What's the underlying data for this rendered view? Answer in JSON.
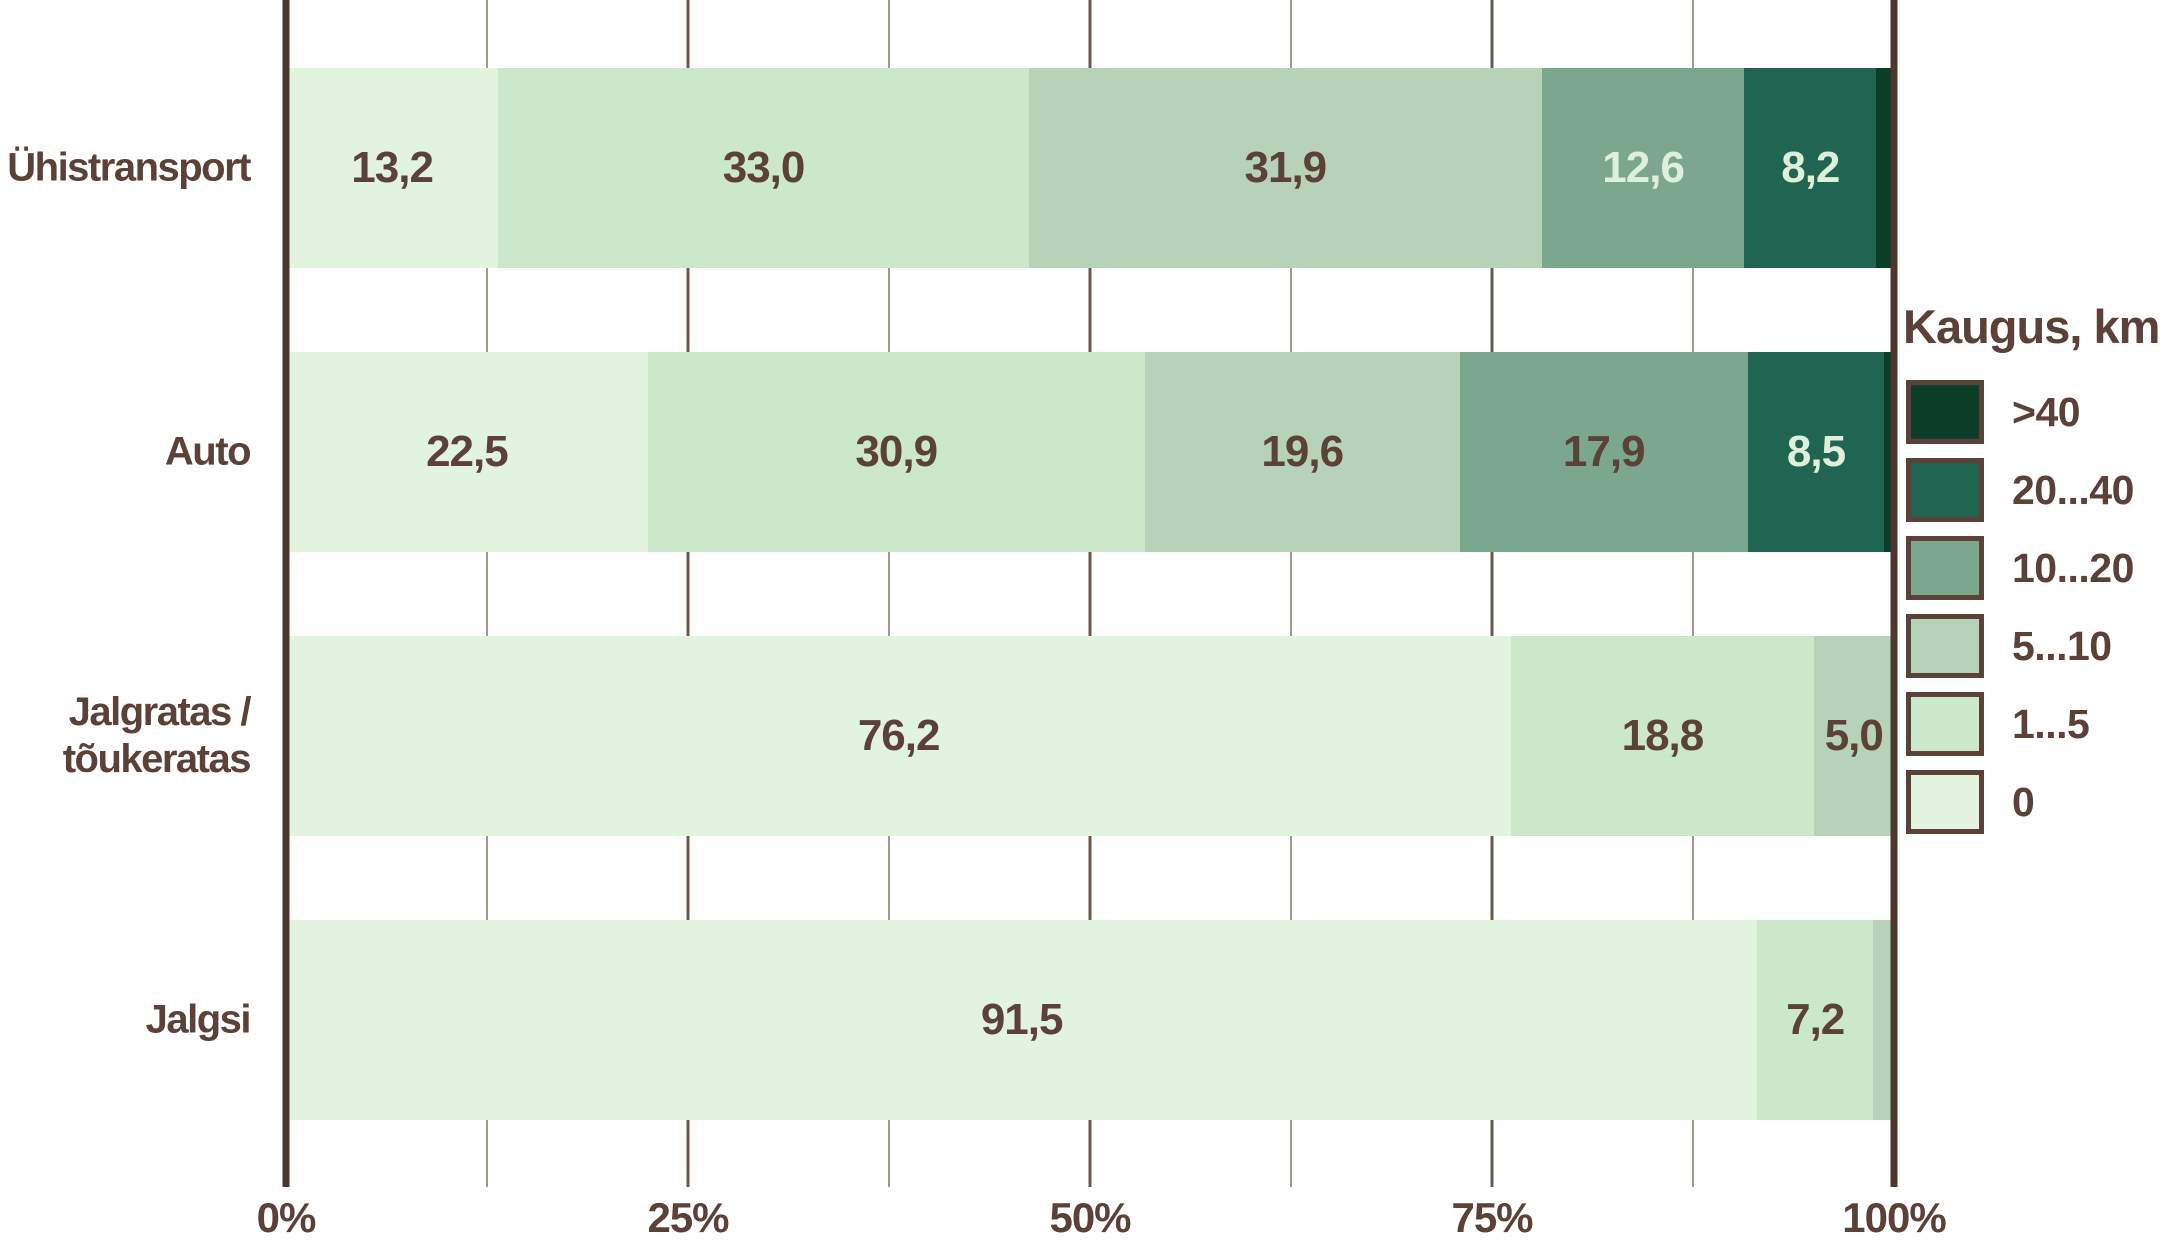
{
  "colors": {
    "background": "#ffffff",
    "text": "#5b4137",
    "segment_label_light": "#def0dc",
    "axis_line": "#4e372d",
    "grid_major": "#6e584e",
    "grid_minor": "#a5958c",
    "buckets": {
      "0": "#e2f4e0",
      "1...5": "#cce8ca",
      "5...10": "#b6d3b9",
      "10...20": "#7aa78e",
      "20...40": "#1f6552",
      ">40": "#0c3d28"
    }
  },
  "x_axis": {
    "tick_labels": [
      "0%",
      "25%",
      "50%",
      "75%",
      "100%"
    ],
    "range": [
      0,
      100
    ],
    "major_step": 25,
    "minor_step": 12.5
  },
  "chart_data": {
    "type": "bar",
    "stacked": true,
    "orientation": "horizontal",
    "unit": "%",
    "xlim": [
      0,
      100
    ],
    "grid": true,
    "legend_position": "right",
    "legend": {
      "title": "Kaugus, km",
      "entries": [
        {
          "label": ">40",
          "bucket": ">40",
          "color": "#0c3d28"
        },
        {
          "label": "20...40",
          "bucket": "20...40",
          "color": "#1f6552"
        },
        {
          "label": "10...20",
          "bucket": "10...20",
          "color": "#7aa78e"
        },
        {
          "label": "5...10",
          "bucket": "5...10",
          "color": "#b6d3b9"
        },
        {
          "label": "1...5",
          "bucket": "1...5",
          "color": "#cce8ca"
        },
        {
          "label": "0",
          "bucket": "0",
          "color": "#e2f4e0"
        }
      ]
    },
    "categories": [
      "Ühistransport",
      "Auto",
      "Jalgratas / tõukeratas",
      "Jalgsi"
    ],
    "series": [
      {
        "name": "0",
        "values": [
          13.2,
          22.5,
          76.2,
          91.5
        ]
      },
      {
        "name": "1...5",
        "values": [
          33.0,
          30.9,
          18.8,
          7.2
        ]
      },
      {
        "name": "5...10",
        "values": [
          31.9,
          19.6,
          5.0,
          1.3
        ]
      },
      {
        "name": "10...20",
        "values": [
          12.6,
          17.9,
          0,
          0
        ]
      },
      {
        "name": "20...40",
        "values": [
          8.2,
          8.5,
          0,
          0
        ]
      },
      {
        "name": ">40",
        "values": [
          1.1,
          0.6,
          0,
          0
        ]
      }
    ],
    "rows": [
      {
        "category": "Ühistransport",
        "label_lines": [
          "Ühistransport"
        ],
        "segments": [
          {
            "bucket": "0",
            "value": 13.2,
            "label": "13,2",
            "light": false
          },
          {
            "bucket": "1...5",
            "value": 33.0,
            "label": "33,0",
            "light": false
          },
          {
            "bucket": "5...10",
            "value": 31.9,
            "label": "31,9",
            "light": false
          },
          {
            "bucket": "10...20",
            "value": 12.6,
            "label": "12,6",
            "light": true
          },
          {
            "bucket": "20...40",
            "value": 8.2,
            "label": "8,2",
            "light": true
          },
          {
            "bucket": ">40",
            "value": 1.1,
            "label": "",
            "light": true
          }
        ]
      },
      {
        "category": "Auto",
        "label_lines": [
          "Auto"
        ],
        "segments": [
          {
            "bucket": "0",
            "value": 22.5,
            "label": "22,5",
            "light": false
          },
          {
            "bucket": "1...5",
            "value": 30.9,
            "label": "30,9",
            "light": false
          },
          {
            "bucket": "5...10",
            "value": 19.6,
            "label": "19,6",
            "light": false
          },
          {
            "bucket": "10...20",
            "value": 17.9,
            "label": "17,9",
            "light": false
          },
          {
            "bucket": "20...40",
            "value": 8.5,
            "label": "8,5",
            "light": true
          },
          {
            "bucket": ">40",
            "value": 0.6,
            "label": "",
            "light": true
          }
        ]
      },
      {
        "category": "Jalgratas / tõukeratas",
        "label_lines": [
          "Jalgratas /",
          "tõukeratas"
        ],
        "segments": [
          {
            "bucket": "0",
            "value": 76.2,
            "label": "76,2",
            "light": false
          },
          {
            "bucket": "1...5",
            "value": 18.8,
            "label": "18,8",
            "light": false
          },
          {
            "bucket": "5...10",
            "value": 5.0,
            "label": "5,0",
            "light": false
          }
        ]
      },
      {
        "category": "Jalgsi",
        "label_lines": [
          "Jalgsi"
        ],
        "segments": [
          {
            "bucket": "0",
            "value": 91.5,
            "label": "91,5",
            "light": false
          },
          {
            "bucket": "1...5",
            "value": 7.2,
            "label": "7,2",
            "light": false
          },
          {
            "bucket": "5...10",
            "value": 1.3,
            "label": "",
            "light": false
          }
        ]
      }
    ]
  }
}
